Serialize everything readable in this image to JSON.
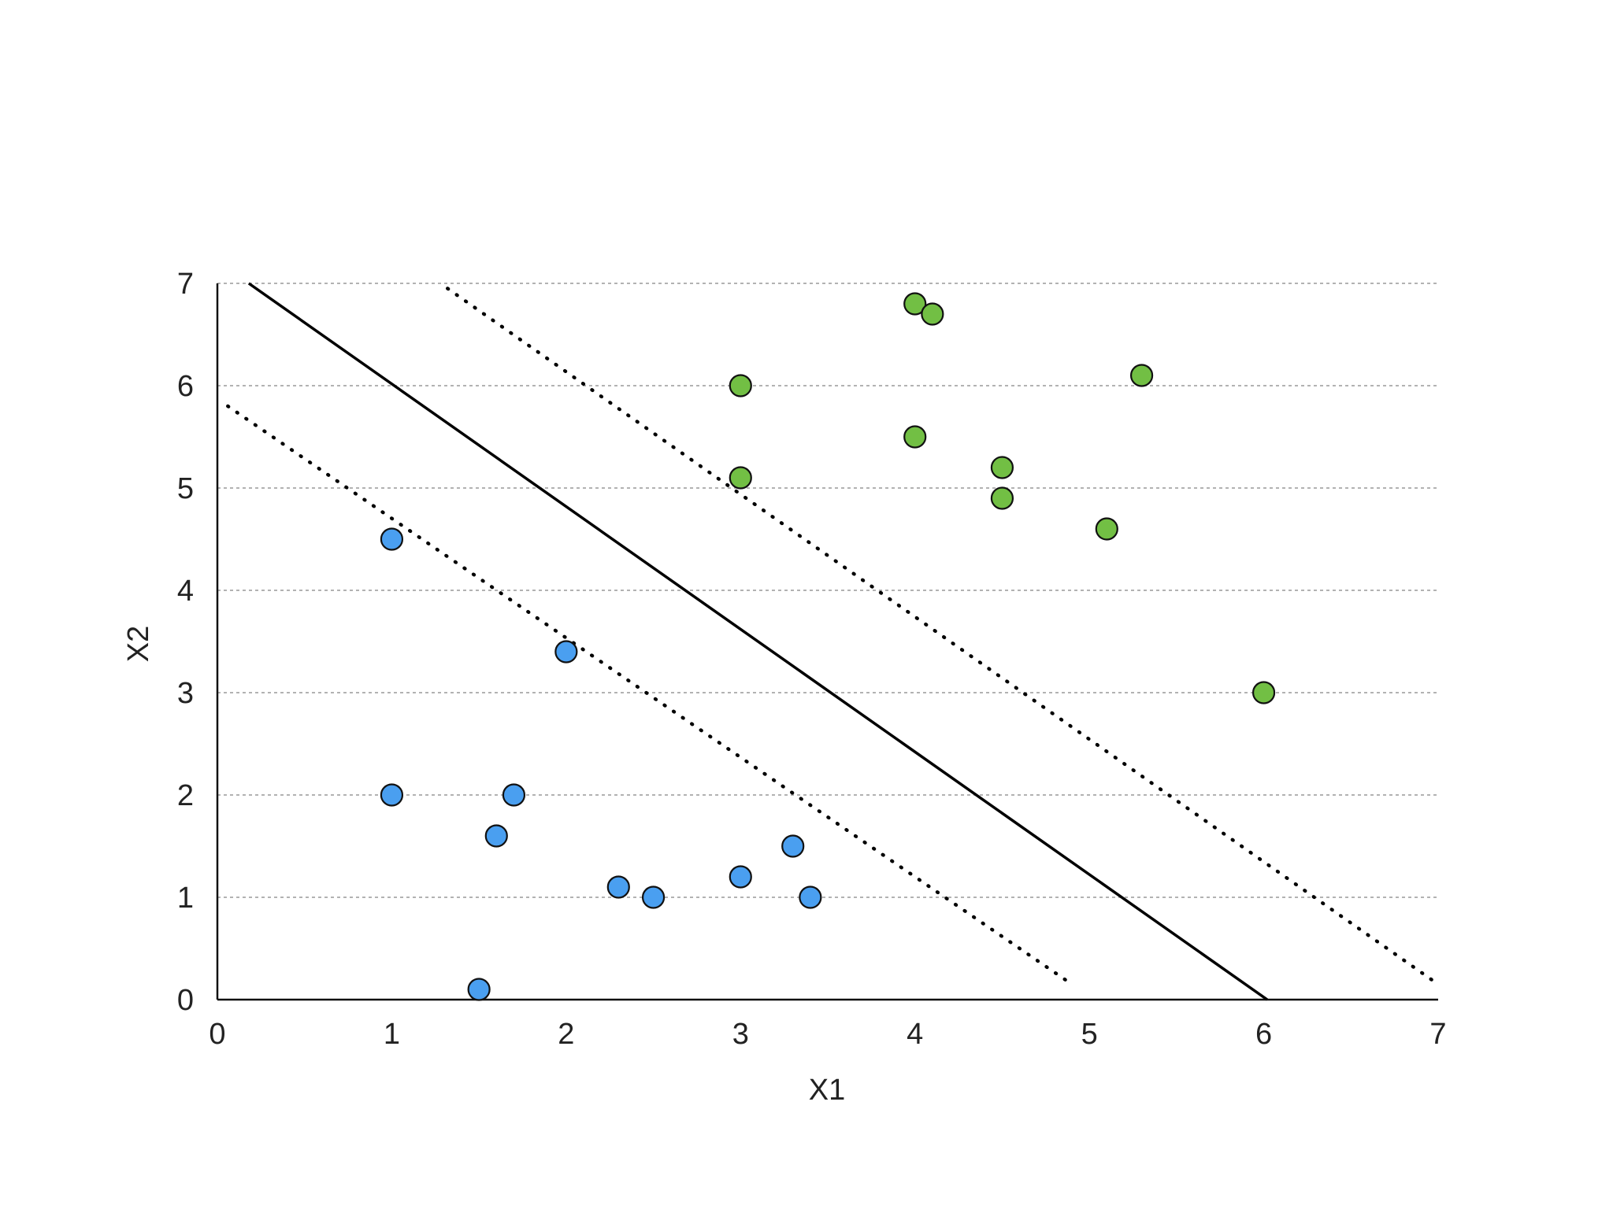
{
  "chart_data": {
    "type": "scatter",
    "xlabel": "X1",
    "ylabel": "X2",
    "xlim": [
      0,
      7
    ],
    "ylim": [
      0,
      7
    ],
    "xticks": [
      "0",
      "1",
      "2",
      "3",
      "4",
      "5",
      "6",
      "7"
    ],
    "yticks": [
      "0",
      "1",
      "2",
      "3",
      "4",
      "5",
      "6",
      "7"
    ],
    "grid": "horizontal-dashed",
    "series": [
      {
        "color": "#4a9ff0",
        "points": [
          {
            "x": 1.0,
            "y": 4.5
          },
          {
            "x": 2.0,
            "y": 3.4
          },
          {
            "x": 1.0,
            "y": 2.0
          },
          {
            "x": 1.7,
            "y": 2.0
          },
          {
            "x": 1.6,
            "y": 1.6
          },
          {
            "x": 2.3,
            "y": 1.1
          },
          {
            "x": 2.5,
            "y": 1.0
          },
          {
            "x": 3.0,
            "y": 1.2
          },
          {
            "x": 3.3,
            "y": 1.5
          },
          {
            "x": 3.4,
            "y": 1.0
          },
          {
            "x": 1.5,
            "y": 0.1
          }
        ]
      },
      {
        "color": "#72bf44",
        "points": [
          {
            "x": 4.0,
            "y": 6.8
          },
          {
            "x": 4.1,
            "y": 6.7
          },
          {
            "x": 3.0,
            "y": 6.0
          },
          {
            "x": 5.3,
            "y": 6.1
          },
          {
            "x": 4.0,
            "y": 5.5
          },
          {
            "x": 3.0,
            "y": 5.1
          },
          {
            "x": 4.5,
            "y": 5.2
          },
          {
            "x": 4.5,
            "y": 4.9
          },
          {
            "x": 5.1,
            "y": 4.6
          },
          {
            "x": 6.0,
            "y": 3.0
          }
        ]
      }
    ],
    "lines": [
      {
        "kind": "hyperplane",
        "style": "solid",
        "from": [
          0.18,
          7.0
        ],
        "to": [
          6.02,
          0.0
        ]
      },
      {
        "kind": "margin",
        "style": "dotted",
        "from": [
          0.06,
          5.8
        ],
        "to": [
          4.9,
          0.15
        ]
      },
      {
        "kind": "margin",
        "style": "dotted",
        "from": [
          1.32,
          6.95
        ],
        "to": [
          7.0,
          0.15
        ]
      }
    ]
  }
}
